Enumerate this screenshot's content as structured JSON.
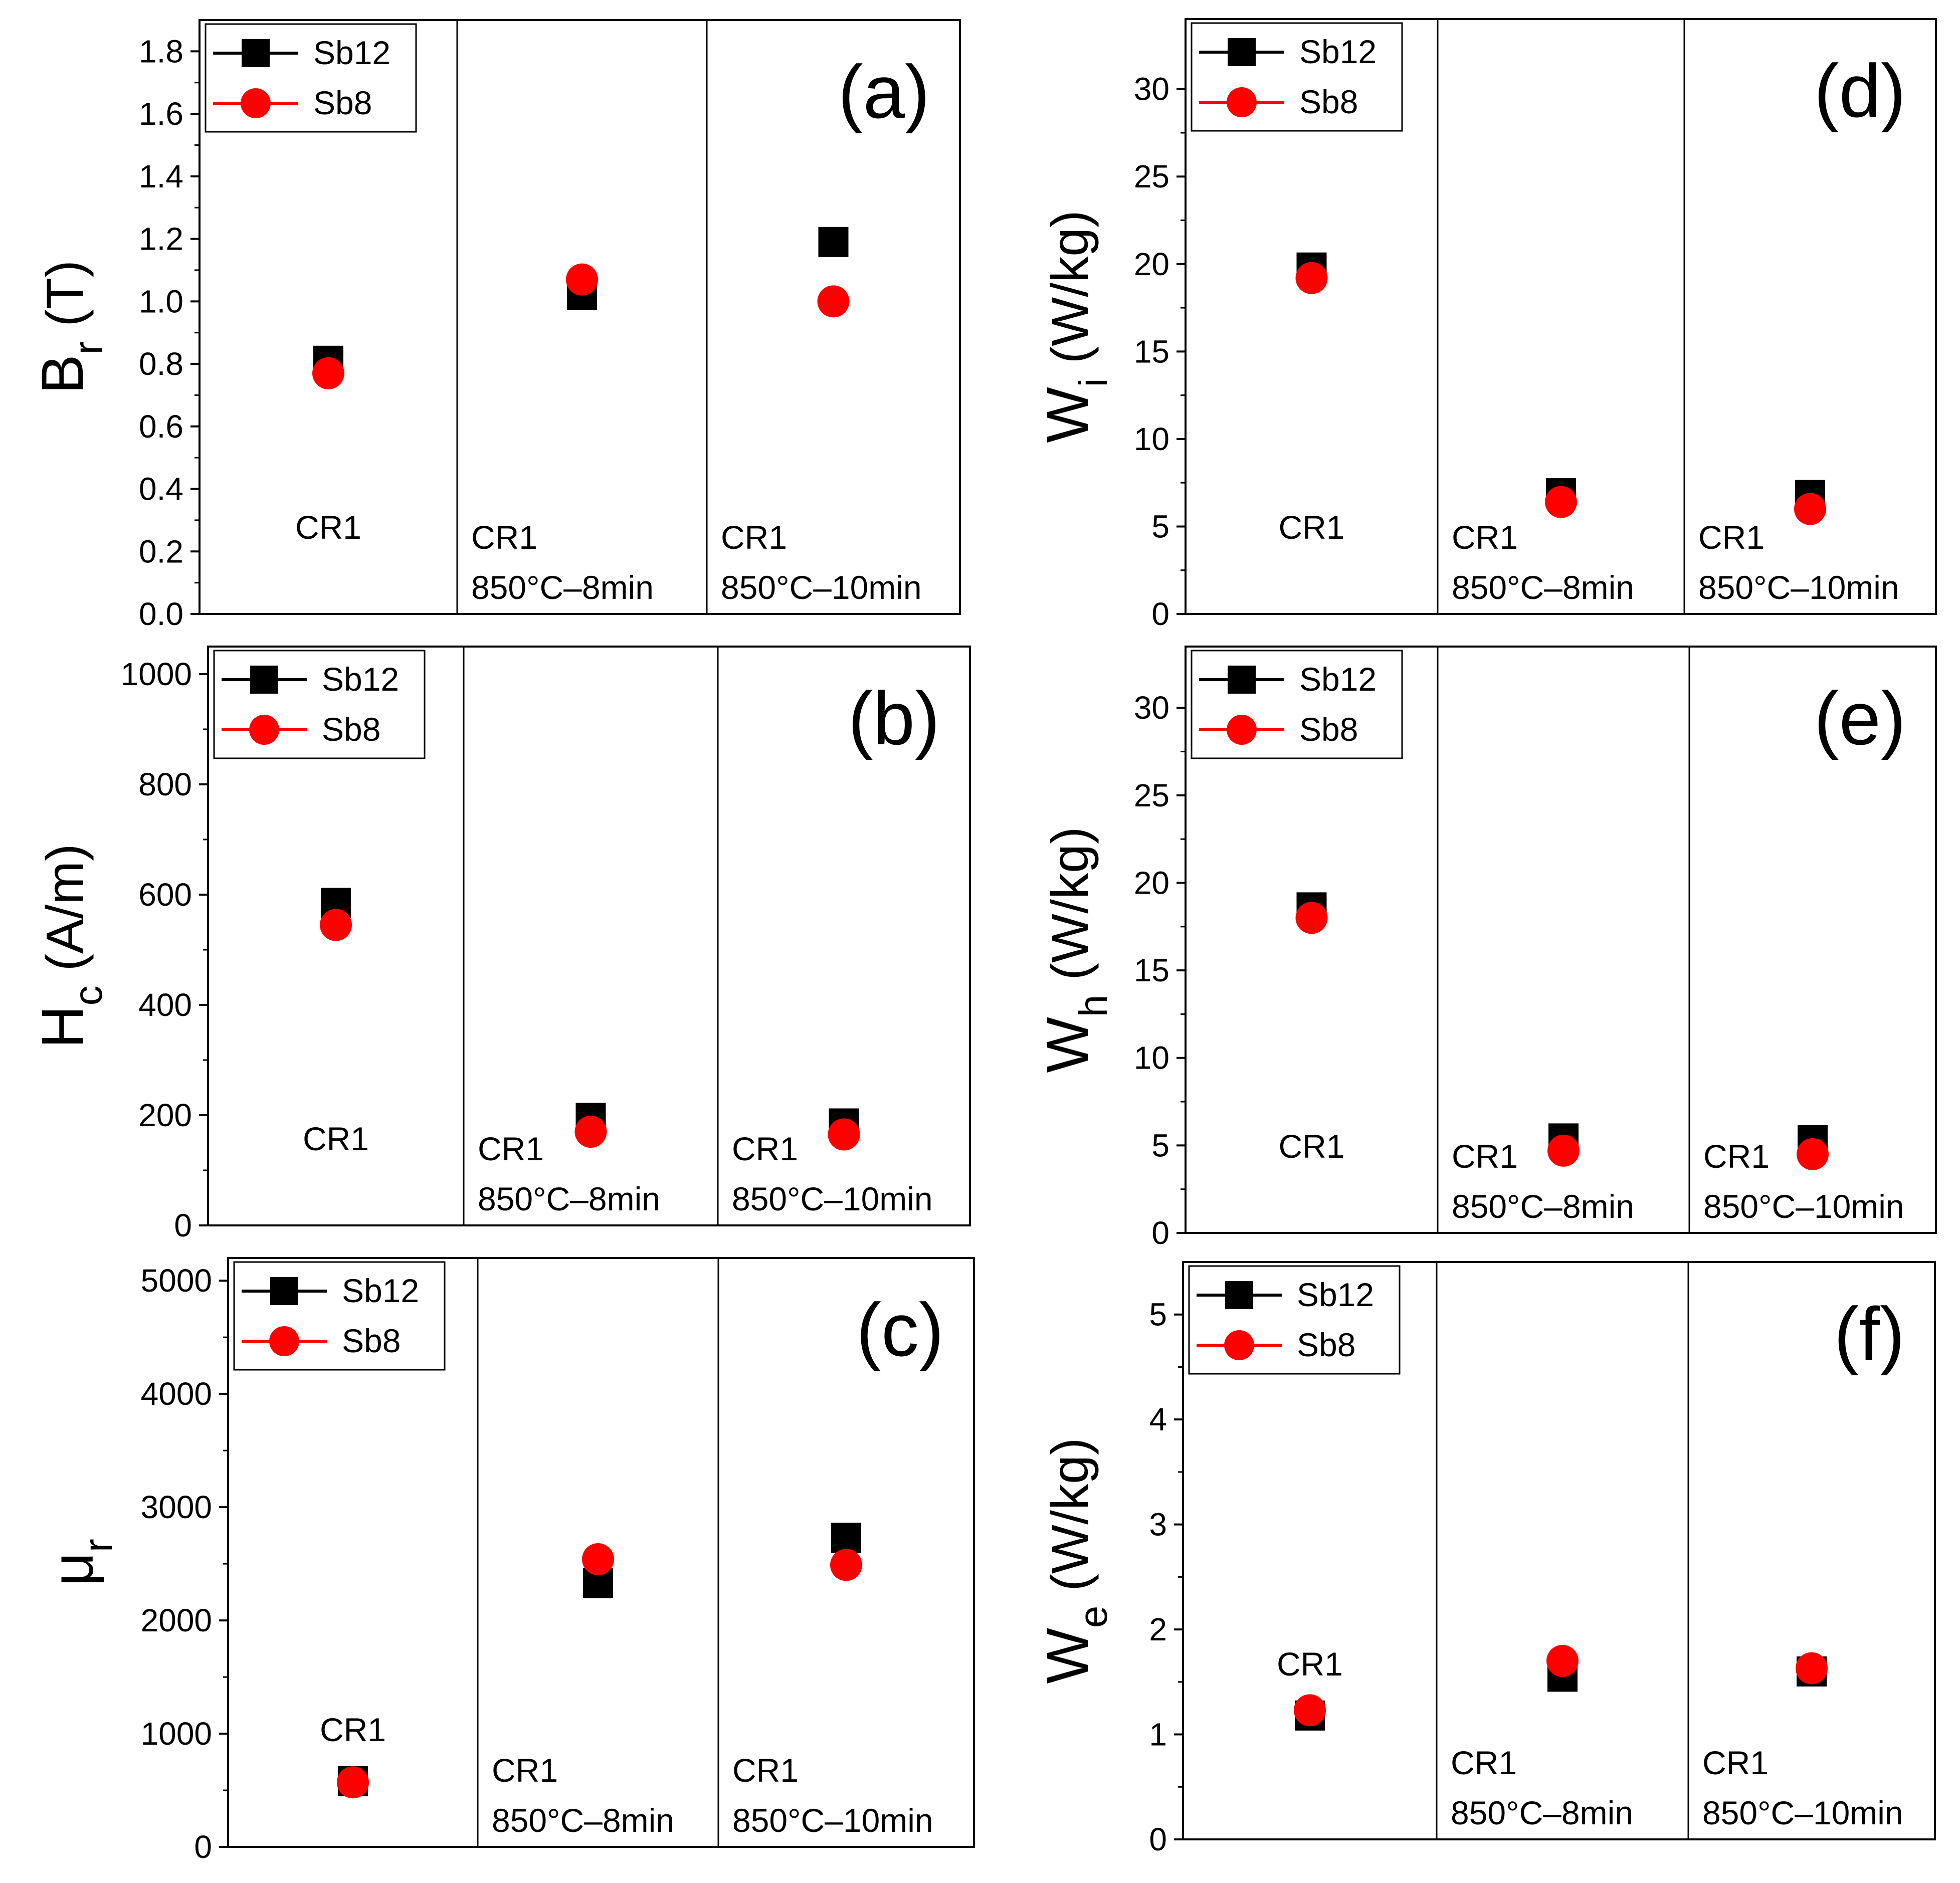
{
  "figure": {
    "series": [
      {
        "name": "Sb12",
        "color": "#000000",
        "marker": "square"
      },
      {
        "name": "Sb8",
        "color": "#ff0000",
        "marker": "circle"
      }
    ]
  },
  "chart_data": [
    {
      "type": "scatter",
      "panel": "(a)",
      "ylabel_main": "B",
      "ylabel_sub": "r",
      "ylabel_unit": "(T)",
      "ylim": [
        0,
        1.9
      ],
      "yticks": [
        "0.0",
        "0.2",
        "0.4",
        "0.6",
        "0.8",
        "1.0",
        "1.2",
        "1.4",
        "1.6",
        "1.8"
      ],
      "ytick_values": [
        0,
        0.2,
        0.4,
        0.6,
        0.8,
        1.0,
        1.2,
        1.4,
        1.6,
        1.8
      ],
      "categories": [
        {
          "line1": "CR1",
          "line2": ""
        },
        {
          "line1": "CR1",
          "line2": "850°C–8min"
        },
        {
          "line1": "CR1",
          "line2": "850°C–10min"
        }
      ],
      "series": [
        {
          "name": "Sb12",
          "values": [
            0.81,
            1.02,
            1.19
          ]
        },
        {
          "name": "Sb8",
          "values": [
            0.77,
            1.07,
            1.0
          ]
        }
      ],
      "legend": "top-left"
    },
    {
      "type": "scatter",
      "panel": "(b)",
      "ylabel_main": "H",
      "ylabel_sub": "c",
      "ylabel_unit": "(A/m)",
      "ylim": [
        0,
        1050
      ],
      "yticks": [
        "0",
        "200",
        "400",
        "600",
        "800",
        "1000"
      ],
      "ytick_values": [
        0,
        200,
        400,
        600,
        800,
        1000
      ],
      "categories": [
        {
          "line1": "CR1",
          "line2": ""
        },
        {
          "line1": "CR1",
          "line2": "850°C–8min"
        },
        {
          "line1": "CR1",
          "line2": "850°C–10min"
        }
      ],
      "series": [
        {
          "name": "Sb12",
          "values": [
            585,
            195,
            185
          ]
        },
        {
          "name": "Sb8",
          "values": [
            545,
            170,
            165
          ]
        }
      ],
      "legend": "top-left"
    },
    {
      "type": "scatter",
      "panel": "(c)",
      "ylabel_main": "μ",
      "ylabel_sub": "r",
      "ylabel_unit": "",
      "ylim": [
        0,
        5200
      ],
      "yticks": [
        "0",
        "1000",
        "2000",
        "3000",
        "4000",
        "5000"
      ],
      "ytick_values": [
        0,
        1000,
        2000,
        3000,
        4000,
        5000
      ],
      "categories": [
        {
          "line1": "CR1",
          "line2": ""
        },
        {
          "line1": "CR1",
          "line2": "850°C–8min"
        },
        {
          "line1": "CR1",
          "line2": "850°C–10min"
        }
      ],
      "series": [
        {
          "name": "Sb12",
          "values": [
            580,
            2330,
            2730
          ]
        },
        {
          "name": "Sb8",
          "values": [
            570,
            2540,
            2490
          ]
        }
      ],
      "legend": "top-left"
    },
    {
      "type": "scatter",
      "panel": "(d)",
      "ylabel_main": "W",
      "ylabel_sub": "i",
      "ylabel_unit": "(W/kg)",
      "ylim": [
        0,
        34
      ],
      "yticks": [
        "0",
        "5",
        "10",
        "15",
        "20",
        "25",
        "30"
      ],
      "ytick_values": [
        0,
        5,
        10,
        15,
        20,
        25,
        30
      ],
      "categories": [
        {
          "line1": "CR1",
          "line2": ""
        },
        {
          "line1": "CR1",
          "line2": "850°C–8min"
        },
        {
          "line1": "CR1",
          "line2": "850°C–10min"
        }
      ],
      "series": [
        {
          "name": "Sb12",
          "values": [
            19.8,
            6.9,
            6.8
          ]
        },
        {
          "name": "Sb8",
          "values": [
            19.2,
            6.4,
            6.0
          ]
        }
      ],
      "legend": "top-left"
    },
    {
      "type": "scatter",
      "panel": "(e)",
      "ylabel_main": "W",
      "ylabel_sub": "h",
      "ylabel_unit": "(W/kg)",
      "ylim": [
        0,
        33.5
      ],
      "yticks": [
        "0",
        "5",
        "10",
        "15",
        "20",
        "25",
        "30"
      ],
      "ytick_values": [
        0,
        5,
        10,
        15,
        20,
        25,
        30
      ],
      "categories": [
        {
          "line1": "CR1",
          "line2": ""
        },
        {
          "line1": "CR1",
          "line2": "850°C–8min"
        },
        {
          "line1": "CR1",
          "line2": "850°C–10min"
        }
      ],
      "series": [
        {
          "name": "Sb12",
          "values": [
            18.6,
            5.4,
            5.3
          ]
        },
        {
          "name": "Sb8",
          "values": [
            18.0,
            4.7,
            4.5
          ]
        }
      ],
      "legend": "top-left"
    },
    {
      "type": "scatter",
      "panel": "(f)",
      "ylabel_main": "W",
      "ylabel_sub": "e",
      "ylabel_unit": "(W/kg)",
      "ylim": [
        0,
        5.5
      ],
      "yticks": [
        "0",
        "1",
        "2",
        "3",
        "4",
        "5"
      ],
      "ytick_values": [
        0,
        1,
        2,
        3,
        4,
        5
      ],
      "categories": [
        {
          "line1": "CR1",
          "line2": ""
        },
        {
          "line1": "CR1",
          "line2": "850°C–8min"
        },
        {
          "line1": "CR1",
          "line2": "850°C–10min"
        }
      ],
      "series": [
        {
          "name": "Sb12",
          "values": [
            1.18,
            1.55,
            1.6
          ]
        },
        {
          "name": "Sb8",
          "values": [
            1.23,
            1.7,
            1.63
          ]
        }
      ],
      "legend": "top-left"
    }
  ]
}
